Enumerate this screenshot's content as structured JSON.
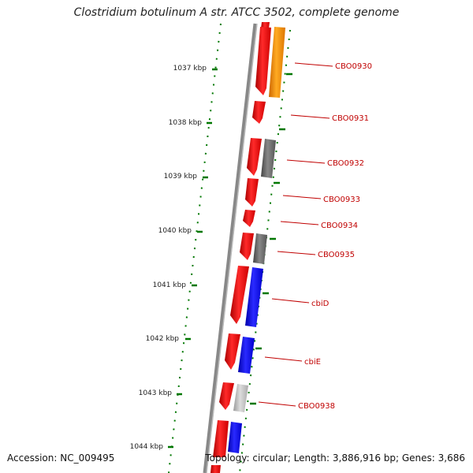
{
  "title": "Clostridium botulinum A str. ATCC 3502, complete genome",
  "footer": {
    "accession": "Accession: NC_009495",
    "summary": "Topology: circular; Length: 3,886,916 bp; Genes: 3,686"
  },
  "scale_labels": [
    "1037 kbp",
    "1038 kbp",
    "1039 kbp",
    "1040 kbp",
    "1041 kbp",
    "1042 kbp",
    "1043 kbp",
    "1044 kbp"
  ],
  "gene_labels": [
    "CBO0930",
    "CBO0931",
    "CBO0932",
    "CBO0933",
    "CBO0934",
    "CBO0935",
    "cbiD",
    "cbiE",
    "CBO0938"
  ],
  "colors": {
    "gene": "#ff0000",
    "cog_orange": "#ff9900",
    "cog_gray": "#666666",
    "cog_blue": "#0000ff",
    "cog_lightgray": "#bbbbbb",
    "backbone": "#888888",
    "ticks": "#007700",
    "label": "#c00000"
  }
}
